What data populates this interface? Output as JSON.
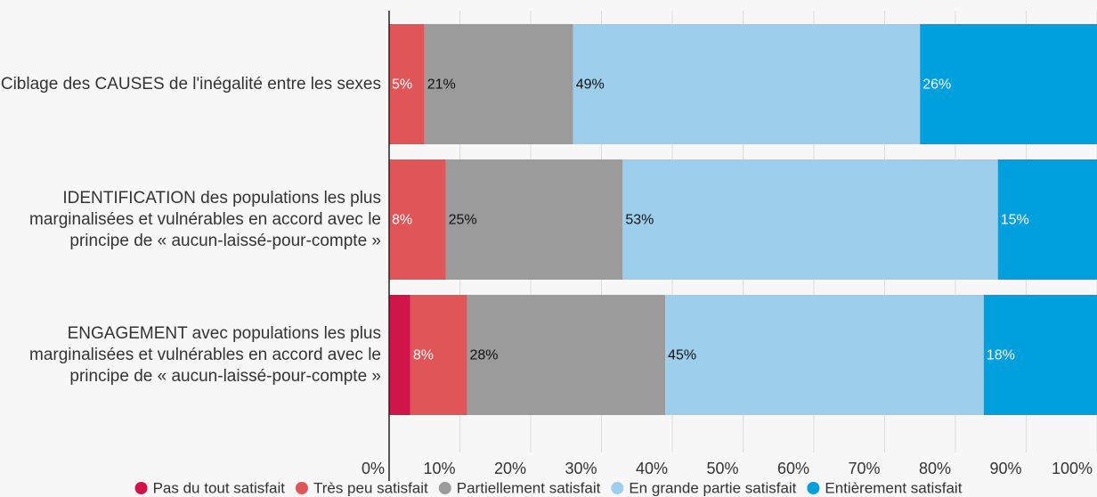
{
  "chart_data": {
    "type": "stacked_barh",
    "categories": [
      "Ciblage des CAUSES de l'inégalité entre les sexes",
      "IDENTIFICATION des populations les plus marginalisées et vulnérables en accord avec le principe de « aucun-laissé-pour-compte »",
      "ENGAGEMENT avec populations les plus marginalisées et vulnérables en accord avec le principe de « aucun-laissé-pour-compte »"
    ],
    "series": [
      {
        "name": "Pas du tout satisfait",
        "color": "#d0144a",
        "values": [
          0,
          0,
          3
        ],
        "value_labels": [
          null,
          null,
          null
        ]
      },
      {
        "name": "Très peu satisfait",
        "color": "#e05558",
        "values": [
          5,
          8,
          8
        ],
        "value_labels": [
          "5%",
          "8%",
          "8%"
        ]
      },
      {
        "name": "Partiellement satisfait",
        "color": "#9b9b9b",
        "values": [
          21,
          25,
          28
        ],
        "value_labels": [
          "21%",
          "25%",
          "28%"
        ]
      },
      {
        "name": "En grande partie satisfait",
        "color": "#9dcfec",
        "values": [
          49,
          53,
          45
        ],
        "value_labels": [
          "49%",
          "53%",
          "45%"
        ]
      },
      {
        "name": "Entièrement satisfait",
        "color": "#009fdd",
        "values": [
          26,
          15,
          18
        ],
        "value_labels": [
          "26%",
          "15%",
          "18%"
        ]
      }
    ],
    "xlim": [
      0,
      100
    ],
    "xticks": [
      {
        "value": 0,
        "label": "0%"
      },
      {
        "value": 10,
        "label": "10%"
      },
      {
        "value": 20,
        "label": "20%"
      },
      {
        "value": 30,
        "label": "30%"
      },
      {
        "value": 40,
        "label": "40%"
      },
      {
        "value": 50,
        "label": "50%"
      },
      {
        "value": 60,
        "label": "60%"
      },
      {
        "value": 70,
        "label": "70%"
      },
      {
        "value": 80,
        "label": "80%"
      },
      {
        "value": 90,
        "label": "90%"
      },
      {
        "value": 100,
        "label": "100%"
      }
    ],
    "grid": true,
    "legend": "bottom"
  }
}
